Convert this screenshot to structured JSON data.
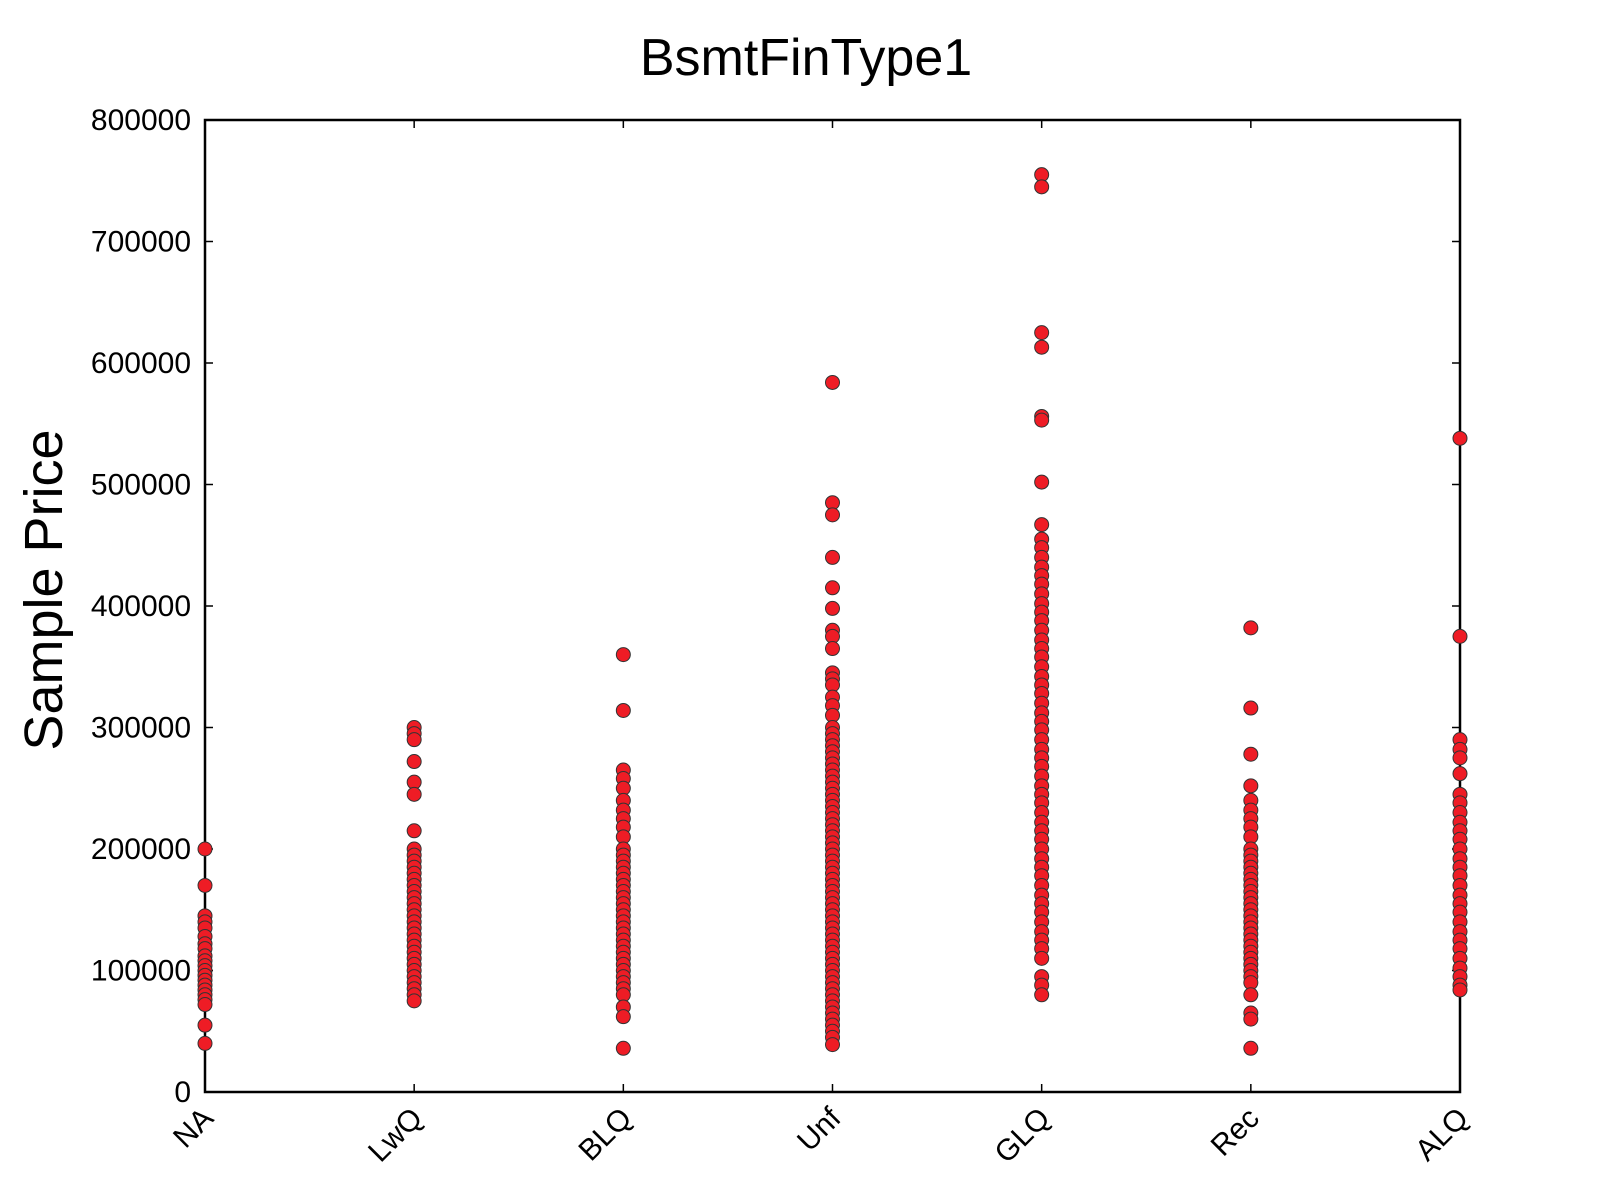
{
  "chart_data": {
    "type": "scatter",
    "title": "BsmtFinType1",
    "xlabel": "",
    "ylabel": "Sample Price",
    "categories": [
      "NA",
      "LwQ",
      "BLQ",
      "Unf",
      "GLQ",
      "Rec",
      "ALQ"
    ],
    "ylim": [
      0,
      800000
    ],
    "yticks": [
      0,
      100000,
      200000,
      300000,
      400000,
      500000,
      600000,
      700000,
      800000
    ],
    "grid": false,
    "legend": "none",
    "marker_color": "#ee1c25",
    "marker_edge": "#333333",
    "series": [
      {
        "category": "NA",
        "values": [
          200000,
          170000,
          145000,
          140000,
          135000,
          128000,
          122000,
          118000,
          112000,
          108000,
          104000,
          100000,
          96000,
          92000,
          88000,
          84000,
          80000,
          76000,
          72000,
          55000,
          40000
        ]
      },
      {
        "category": "LwQ",
        "values": [
          300000,
          295000,
          290000,
          272000,
          255000,
          245000,
          215000,
          200000,
          195000,
          190000,
          185000,
          180000,
          175000,
          170000,
          165000,
          160000,
          155000,
          150000,
          145000,
          140000,
          135000,
          130000,
          125000,
          120000,
          115000,
          110000,
          105000,
          100000,
          95000,
          90000,
          85000,
          80000,
          75000
        ]
      },
      {
        "category": "BLQ",
        "values": [
          360000,
          314000,
          265000,
          258000,
          250000,
          240000,
          232000,
          225000,
          218000,
          210000,
          200000,
          195000,
          190000,
          185000,
          180000,
          175000,
          170000,
          165000,
          160000,
          155000,
          150000,
          145000,
          140000,
          135000,
          130000,
          125000,
          120000,
          115000,
          110000,
          105000,
          100000,
          95000,
          90000,
          85000,
          80000,
          70000,
          62000,
          36000
        ]
      },
      {
        "category": "Unf",
        "values": [
          584000,
          485000,
          475000,
          440000,
          415000,
          398000,
          380000,
          375000,
          365000,
          345000,
          340000,
          335000,
          325000,
          318000,
          310000,
          300000,
          295000,
          290000,
          285000,
          280000,
          275000,
          270000,
          265000,
          260000,
          255000,
          250000,
          245000,
          240000,
          235000,
          230000,
          225000,
          220000,
          215000,
          210000,
          205000,
          200000,
          195000,
          190000,
          185000,
          180000,
          175000,
          170000,
          165000,
          160000,
          155000,
          150000,
          145000,
          140000,
          135000,
          130000,
          125000,
          120000,
          115000,
          110000,
          105000,
          100000,
          95000,
          90000,
          85000,
          80000,
          75000,
          70000,
          65000,
          60000,
          55000,
          50000,
          45000,
          39000
        ]
      },
      {
        "category": "GLQ",
        "values": [
          755000,
          745000,
          625000,
          613000,
          556000,
          553000,
          502000,
          467000,
          455000,
          448000,
          440000,
          432000,
          425000,
          418000,
          410000,
          402000,
          395000,
          388000,
          380000,
          372000,
          365000,
          358000,
          350000,
          342000,
          335000,
          328000,
          320000,
          312000,
          305000,
          298000,
          290000,
          282000,
          275000,
          268000,
          260000,
          252000,
          245000,
          238000,
          230000,
          222000,
          215000,
          208000,
          200000,
          192000,
          185000,
          178000,
          170000,
          162000,
          155000,
          148000,
          140000,
          132000,
          125000,
          118000,
          110000,
          95000,
          88000,
          80000
        ]
      },
      {
        "category": "Rec",
        "values": [
          382000,
          316000,
          278000,
          252000,
          240000,
          232000,
          225000,
          218000,
          210000,
          200000,
          195000,
          190000,
          185000,
          180000,
          175000,
          170000,
          165000,
          160000,
          155000,
          150000,
          145000,
          140000,
          135000,
          130000,
          125000,
          120000,
          115000,
          110000,
          105000,
          100000,
          95000,
          90000,
          80000,
          65000,
          60000,
          36000
        ]
      },
      {
        "category": "ALQ",
        "values": [
          538000,
          375000,
          290000,
          282000,
          275000,
          262000,
          245000,
          238000,
          230000,
          222000,
          215000,
          208000,
          200000,
          192000,
          185000,
          178000,
          170000,
          162000,
          155000,
          148000,
          140000,
          132000,
          125000,
          118000,
          110000,
          102000,
          95000,
          88000,
          84000
        ]
      }
    ]
  }
}
